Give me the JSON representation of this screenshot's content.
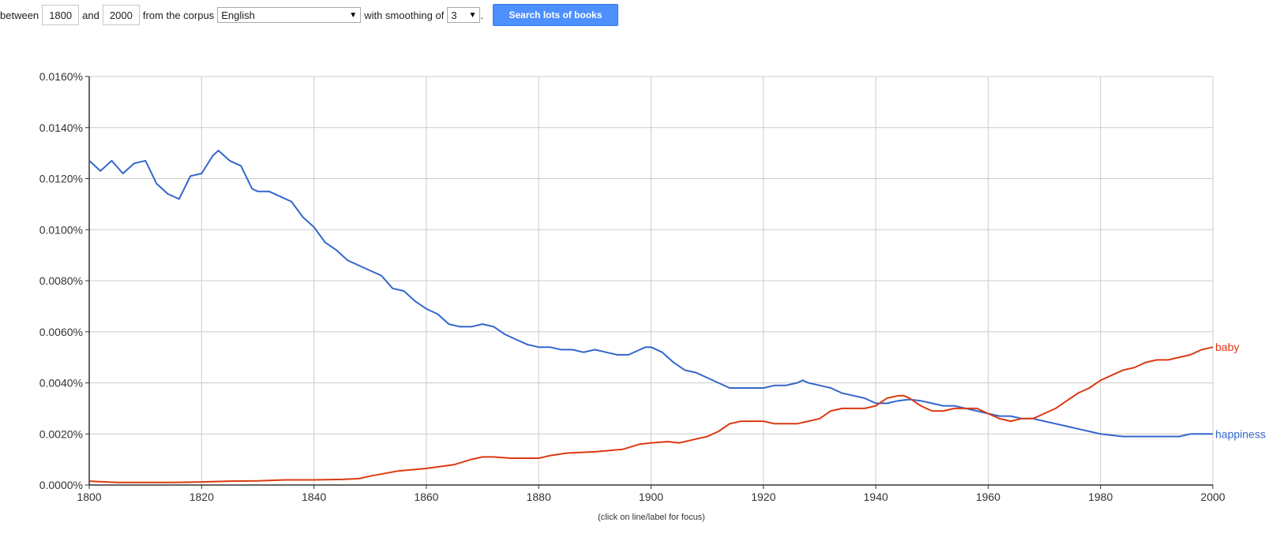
{
  "controls": {
    "between_label": "between",
    "start_year": "1800",
    "and_label": "and",
    "end_year": "2000",
    "corpus_label": "from the corpus",
    "corpus_value": "English",
    "smoothing_label": "with smoothing of",
    "smoothing_value": "3",
    "period": ".",
    "search_button": "Search lots of books"
  },
  "chart_data": {
    "type": "line",
    "xlim": [
      1800,
      2000
    ],
    "ylim": [
      0,
      0.016
    ],
    "x_ticks": [
      "1800",
      "1820",
      "1840",
      "1860",
      "1880",
      "1900",
      "1920",
      "1940",
      "1960",
      "1980",
      "2000"
    ],
    "y_ticks": [
      "0.0000%",
      "0.0020%",
      "0.0040%",
      "0.0060%",
      "0.0080%",
      "0.0100%",
      "0.0120%",
      "0.0140%",
      "0.0160%"
    ],
    "grid": true,
    "legend": "line-end labels",
    "footnote": "(click on line/label for focus)",
    "series": [
      {
        "name": "happiness",
        "color": "#3366cc",
        "x": [
          1800,
          1802,
          1804,
          1806,
          1808,
          1810,
          1812,
          1814,
          1816,
          1818,
          1820,
          1822,
          1823,
          1825,
          1827,
          1829,
          1830,
          1832,
          1834,
          1836,
          1838,
          1840,
          1842,
          1844,
          1846,
          1848,
          1850,
          1852,
          1854,
          1856,
          1858,
          1860,
          1862,
          1864,
          1866,
          1868,
          1870,
          1872,
          1874,
          1876,
          1878,
          1880,
          1882,
          1884,
          1886,
          1888,
          1890,
          1892,
          1894,
          1896,
          1898,
          1899,
          1900,
          1902,
          1904,
          1906,
          1908,
          1910,
          1912,
          1914,
          1916,
          1918,
          1920,
          1922,
          1924,
          1926,
          1927,
          1928,
          1930,
          1932,
          1934,
          1936,
          1938,
          1940,
          1942,
          1944,
          1946,
          1948,
          1950,
          1952,
          1954,
          1956,
          1958,
          1960,
          1962,
          1964,
          1966,
          1968,
          1970,
          1972,
          1974,
          1976,
          1978,
          1980,
          1982,
          1984,
          1986,
          1988,
          1990,
          1992,
          1994,
          1996,
          1998,
          2000
        ],
        "y": [
          0.0127,
          0.0123,
          0.0127,
          0.0122,
          0.0126,
          0.0127,
          0.0118,
          0.0114,
          0.0112,
          0.0121,
          0.0122,
          0.0129,
          0.0131,
          0.0127,
          0.0125,
          0.0116,
          0.0115,
          0.0115,
          0.0113,
          0.0111,
          0.0105,
          0.0101,
          0.0095,
          0.0092,
          0.0088,
          0.0086,
          0.0084,
          0.0082,
          0.0077,
          0.0076,
          0.0072,
          0.0069,
          0.0067,
          0.0063,
          0.0062,
          0.0062,
          0.0063,
          0.0062,
          0.0059,
          0.0057,
          0.0055,
          0.0054,
          0.0054,
          0.0053,
          0.0053,
          0.0052,
          0.0053,
          0.0052,
          0.0051,
          0.0051,
          0.0053,
          0.0054,
          0.0054,
          0.0052,
          0.0048,
          0.0045,
          0.0044,
          0.0042,
          0.004,
          0.0038,
          0.0038,
          0.0038,
          0.0038,
          0.0039,
          0.0039,
          0.004,
          0.0041,
          0.004,
          0.0039,
          0.0038,
          0.0036,
          0.0035,
          0.0034,
          0.0032,
          0.0032,
          0.0033,
          0.00335,
          0.0033,
          0.0032,
          0.0031,
          0.0031,
          0.003,
          0.0029,
          0.0028,
          0.0027,
          0.0027,
          0.0026,
          0.0026,
          0.0025,
          0.0024,
          0.0023,
          0.0022,
          0.0021,
          0.002,
          0.00195,
          0.0019,
          0.0019,
          0.0019,
          0.0019,
          0.0019,
          0.0019,
          0.002,
          0.002,
          0.002
        ]
      },
      {
        "name": "baby",
        "color": "#dc3912",
        "x": [
          1800,
          1805,
          1810,
          1815,
          1820,
          1825,
          1830,
          1835,
          1840,
          1845,
          1848,
          1850,
          1855,
          1860,
          1865,
          1868,
          1870,
          1872,
          1875,
          1880,
          1882,
          1885,
          1890,
          1895,
          1898,
          1900,
          1903,
          1905,
          1908,
          1910,
          1912,
          1914,
          1916,
          1918,
          1920,
          1922,
          1924,
          1926,
          1928,
          1930,
          1932,
          1934,
          1936,
          1938,
          1940,
          1942,
          1944,
          1945,
          1946,
          1948,
          1950,
          1952,
          1954,
          1956,
          1958,
          1960,
          1962,
          1964,
          1966,
          1968,
          1970,
          1972,
          1974,
          1976,
          1978,
          1980,
          1982,
          1984,
          1986,
          1988,
          1990,
          1992,
          1994,
          1996,
          1998,
          2000
        ],
        "y": [
          0.00015,
          0.0001,
          0.0001,
          0.0001,
          0.00012,
          0.00015,
          0.00016,
          0.0002,
          0.0002,
          0.00022,
          0.00025,
          0.00035,
          0.00055,
          0.00065,
          0.0008,
          0.001,
          0.0011,
          0.0011,
          0.00105,
          0.00105,
          0.00115,
          0.00125,
          0.0013,
          0.0014,
          0.0016,
          0.00165,
          0.0017,
          0.00165,
          0.0018,
          0.0019,
          0.0021,
          0.0024,
          0.0025,
          0.0025,
          0.0025,
          0.0024,
          0.0024,
          0.0024,
          0.0025,
          0.0026,
          0.0029,
          0.003,
          0.003,
          0.003,
          0.0031,
          0.0034,
          0.0035,
          0.0035,
          0.0034,
          0.0031,
          0.0029,
          0.0029,
          0.003,
          0.003,
          0.003,
          0.0028,
          0.0026,
          0.0025,
          0.0026,
          0.0026,
          0.0028,
          0.003,
          0.0033,
          0.0036,
          0.0038,
          0.0041,
          0.0043,
          0.0045,
          0.0046,
          0.0048,
          0.0049,
          0.0049,
          0.005,
          0.0051,
          0.0053,
          0.0054
        ]
      }
    ]
  }
}
